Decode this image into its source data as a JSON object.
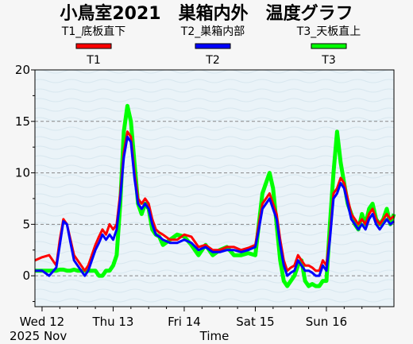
{
  "chart_data": {
    "type": "line",
    "title": "小鳥室2021　巣箱内外　温度グラフ",
    "xlabel": "Time",
    "ylabel": "",
    "ylim": [
      -3,
      20
    ],
    "yticks": [
      0,
      5,
      10,
      15,
      20
    ],
    "grid": "horizontal dashed",
    "legend_placement": "top",
    "x_start_label": "2025 Nov",
    "x_ticks": [
      {
        "day": 0,
        "label": "Wed 12"
      },
      {
        "day": 1,
        "label": "Thu 13"
      },
      {
        "day": 2,
        "label": "Fri 14"
      },
      {
        "day": 3,
        "label": "Sat 15"
      },
      {
        "day": 4,
        "label": "Sun 16"
      }
    ],
    "xlim": [
      -0.1,
      4.95
    ],
    "series": [
      {
        "name": "T1",
        "description": "T1_底板直下",
        "color": "#ff0000",
        "x": [
          -0.1,
          0.0,
          0.1,
          0.2,
          0.25,
          0.3,
          0.35,
          0.4,
          0.45,
          0.5,
          0.55,
          0.6,
          0.65,
          0.7,
          0.75,
          0.8,
          0.85,
          0.9,
          0.95,
          1.0,
          1.05,
          1.1,
          1.15,
          1.2,
          1.25,
          1.3,
          1.35,
          1.4,
          1.45,
          1.5,
          1.55,
          1.6,
          1.65,
          1.7,
          1.8,
          1.9,
          2.0,
          2.1,
          2.2,
          2.3,
          2.4,
          2.5,
          2.6,
          2.7,
          2.8,
          2.9,
          3.0,
          3.05,
          3.1,
          3.15,
          3.2,
          3.25,
          3.3,
          3.35,
          3.4,
          3.45,
          3.5,
          3.55,
          3.6,
          3.65,
          3.7,
          3.75,
          3.8,
          3.85,
          3.9,
          3.95,
          4.0,
          4.05,
          4.1,
          4.15,
          4.2,
          4.25,
          4.3,
          4.35,
          4.4,
          4.45,
          4.5,
          4.55,
          4.6,
          4.65,
          4.7,
          4.75,
          4.8,
          4.85,
          4.9,
          4.95
        ],
        "values": [
          1.5,
          1.8,
          2.0,
          1.0,
          3.5,
          5.5,
          5.0,
          3.5,
          2.0,
          1.5,
          1.0,
          0.5,
          1.0,
          2.0,
          3.0,
          3.8,
          4.5,
          4.0,
          5.0,
          4.5,
          5.0,
          8.0,
          12.0,
          14.0,
          13.5,
          10.0,
          7.5,
          7.0,
          7.5,
          7.0,
          5.5,
          4.5,
          4.2,
          4.0,
          3.5,
          3.5,
          4.0,
          3.8,
          2.8,
          3.0,
          2.5,
          2.5,
          2.8,
          2.8,
          2.5,
          2.7,
          3.0,
          5.0,
          7.0,
          7.5,
          8.0,
          7.0,
          6.0,
          3.5,
          1.5,
          0.5,
          0.8,
          1.0,
          2.0,
          1.5,
          1.0,
          1.0,
          0.8,
          0.5,
          0.5,
          1.5,
          1.0,
          4.0,
          8.0,
          8.5,
          9.5,
          9.0,
          7.5,
          6.0,
          5.5,
          5.0,
          5.5,
          5.0,
          6.0,
          6.5,
          5.5,
          5.0,
          5.5,
          6.0,
          5.5,
          5.8
        ]
      },
      {
        "name": "T2",
        "description": "T2_巣箱内部",
        "color": "#0000ff",
        "x": [
          -0.1,
          0.0,
          0.1,
          0.2,
          0.25,
          0.3,
          0.35,
          0.4,
          0.45,
          0.5,
          0.55,
          0.6,
          0.65,
          0.7,
          0.75,
          0.8,
          0.85,
          0.9,
          0.95,
          1.0,
          1.05,
          1.1,
          1.15,
          1.2,
          1.25,
          1.3,
          1.35,
          1.4,
          1.45,
          1.5,
          1.55,
          1.6,
          1.65,
          1.7,
          1.8,
          1.9,
          2.0,
          2.1,
          2.2,
          2.3,
          2.4,
          2.5,
          2.6,
          2.7,
          2.8,
          2.9,
          3.0,
          3.05,
          3.1,
          3.15,
          3.2,
          3.25,
          3.3,
          3.35,
          3.4,
          3.45,
          3.5,
          3.55,
          3.6,
          3.65,
          3.7,
          3.75,
          3.8,
          3.85,
          3.9,
          3.95,
          4.0,
          4.05,
          4.1,
          4.15,
          4.2,
          4.25,
          4.3,
          4.35,
          4.4,
          4.45,
          4.5,
          4.55,
          4.6,
          4.65,
          4.7,
          4.75,
          4.8,
          4.85,
          4.9,
          4.95
        ],
        "values": [
          0.5,
          0.5,
          0.0,
          0.8,
          3.0,
          5.3,
          5.0,
          3.2,
          1.5,
          1.0,
          0.5,
          0.0,
          0.5,
          1.5,
          2.5,
          3.2,
          4.0,
          3.5,
          4.0,
          3.5,
          4.5,
          7.5,
          11.5,
          13.5,
          13.0,
          9.5,
          7.0,
          6.5,
          7.0,
          6.5,
          5.0,
          4.0,
          3.8,
          3.5,
          3.2,
          3.2,
          3.5,
          3.2,
          2.5,
          2.8,
          2.3,
          2.3,
          2.5,
          2.5,
          2.3,
          2.5,
          2.8,
          4.5,
          6.5,
          7.0,
          7.5,
          6.5,
          5.5,
          3.0,
          1.0,
          0.0,
          0.3,
          0.5,
          1.5,
          1.0,
          0.5,
          0.5,
          0.3,
          0.0,
          0.0,
          1.0,
          0.5,
          3.5,
          7.5,
          8.0,
          9.0,
          8.5,
          7.0,
          5.5,
          5.0,
          4.5,
          5.0,
          4.5,
          5.5,
          6.0,
          5.0,
          4.5,
          5.0,
          5.5,
          5.0,
          5.3
        ]
      },
      {
        "name": "T3",
        "description": "T3_天板直上",
        "color": "#00ff00",
        "x": [
          -0.1,
          0.0,
          0.1,
          0.2,
          0.25,
          0.3,
          0.35,
          0.4,
          0.45,
          0.5,
          0.55,
          0.6,
          0.65,
          0.7,
          0.75,
          0.8,
          0.85,
          0.9,
          0.95,
          1.0,
          1.05,
          1.1,
          1.15,
          1.2,
          1.25,
          1.3,
          1.35,
          1.4,
          1.45,
          1.5,
          1.55,
          1.6,
          1.65,
          1.7,
          1.8,
          1.9,
          2.0,
          2.1,
          2.2,
          2.3,
          2.4,
          2.5,
          2.6,
          2.7,
          2.8,
          2.9,
          3.0,
          3.05,
          3.1,
          3.15,
          3.2,
          3.25,
          3.3,
          3.35,
          3.4,
          3.45,
          3.5,
          3.55,
          3.6,
          3.65,
          3.7,
          3.75,
          3.8,
          3.85,
          3.9,
          3.95,
          4.0,
          4.05,
          4.1,
          4.15,
          4.2,
          4.25,
          4.3,
          4.35,
          4.4,
          4.45,
          4.5,
          4.55,
          4.6,
          4.65,
          4.7,
          4.75,
          4.8,
          4.85,
          4.9,
          4.95
        ],
        "values": [
          0.5,
          0.5,
          0.5,
          0.5,
          0.6,
          0.6,
          0.5,
          0.5,
          0.6,
          0.5,
          0.5,
          0.5,
          0.5,
          0.5,
          0.5,
          0.0,
          0.0,
          0.5,
          0.5,
          1.0,
          2.0,
          7.0,
          14.0,
          16.5,
          15.0,
          11.0,
          7.0,
          6.0,
          7.0,
          6.5,
          4.5,
          4.0,
          3.8,
          3.0,
          3.5,
          4.0,
          3.8,
          3.0,
          2.0,
          3.0,
          2.0,
          2.5,
          2.8,
          2.0,
          2.0,
          2.2,
          2.0,
          5.0,
          8.0,
          9.0,
          10.0,
          8.5,
          5.0,
          1.5,
          -0.5,
          -1.0,
          -0.5,
          0.0,
          1.0,
          1.5,
          -0.5,
          -1.0,
          -0.8,
          -1.0,
          -1.0,
          -0.5,
          -0.5,
          5.0,
          10.0,
          14.0,
          11.0,
          9.0,
          7.0,
          6.0,
          5.0,
          4.5,
          6.0,
          5.0,
          6.5,
          7.0,
          5.5,
          5.0,
          5.5,
          6.5,
          5.0,
          6.0
        ]
      }
    ]
  }
}
